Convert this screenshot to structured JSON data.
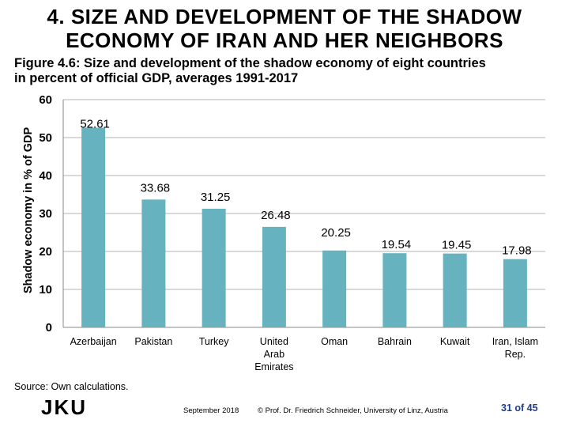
{
  "slide": {
    "title_lines": [
      "4. SIZE AND DEVELOPMENT OF THE SHADOW",
      "ECONOMY OF IRAN AND HER NEIGHBORS"
    ],
    "subtitle_lines": [
      "Figure 4.6: Size and development of the shadow economy of eight countries",
      "in percent of official GDP, averages 1991-2017"
    ],
    "source": "Source: Own calculations.",
    "logo_text": "JKU",
    "footer": {
      "date": "September 2018",
      "credit": "© Prof. Dr. Friedrich Schneider, University of Linz, Austria",
      "page": "31 of 45"
    }
  },
  "chart_data": {
    "type": "bar",
    "categories": [
      [
        "Azerbaijan"
      ],
      [
        "Pakistan"
      ],
      [
        "Turkey"
      ],
      [
        "United",
        "Arab",
        "Emirates"
      ],
      [
        "Oman"
      ],
      [
        "Bahrain"
      ],
      [
        "Kuwait"
      ],
      [
        "Iran, Islam",
        "Rep."
      ]
    ],
    "values": [
      52.61,
      33.68,
      31.25,
      26.48,
      20.25,
      19.54,
      19.45,
      17.98
    ],
    "value_labels": [
      "52.61",
      "33.68",
      "31.25",
      "26.48",
      "20.25",
      "19.54",
      "19.45",
      "17.98"
    ],
    "ylabel": "Shadow economy in % of GDP",
    "xlabel": "",
    "ylim": [
      0,
      60
    ],
    "yticks": [
      0,
      10,
      20,
      30,
      40,
      50,
      60
    ],
    "grid": true,
    "bar_color": "#66b2be",
    "grid_color": "#b3b3b3"
  }
}
